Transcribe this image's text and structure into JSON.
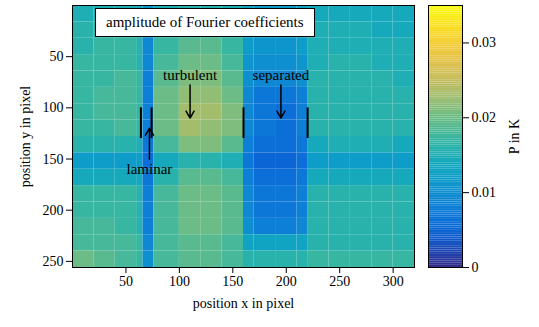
{
  "chart_data": {
    "type": "heatmap",
    "title": "amplitude of Fourier coefficients",
    "x_label": "position x in pixel",
    "y_label": "position y in pixel",
    "xlim": [
      0,
      320
    ],
    "ylim": [
      0,
      256
    ],
    "xticks": [
      50,
      100,
      150,
      200,
      250,
      300
    ],
    "yticks": [
      50,
      100,
      150,
      200,
      250
    ],
    "x_edges": [
      0,
      20,
      40,
      60,
      66,
      76,
      100,
      120,
      140,
      160,
      170,
      190,
      210,
      220,
      240,
      260,
      280,
      300,
      320
    ],
    "y_edges": [
      0,
      16,
      32,
      48,
      64,
      80,
      96,
      112,
      128,
      144,
      160,
      176,
      192,
      208,
      224,
      240,
      256
    ],
    "values": [
      [
        0.015,
        0.015,
        0.015,
        0.014,
        0.011,
        0.015,
        0.016,
        0.016,
        0.015,
        0.013,
        0.012,
        0.012,
        0.013,
        0.014,
        0.014,
        0.014,
        0.014,
        0.014
      ],
      [
        0.016,
        0.016,
        0.016,
        0.015,
        0.01,
        0.016,
        0.017,
        0.017,
        0.016,
        0.013,
        0.012,
        0.012,
        0.013,
        0.015,
        0.015,
        0.015,
        0.014,
        0.014
      ],
      [
        0.016,
        0.017,
        0.017,
        0.016,
        0.009,
        0.017,
        0.019,
        0.019,
        0.017,
        0.012,
        0.011,
        0.011,
        0.012,
        0.015,
        0.015,
        0.015,
        0.015,
        0.015
      ],
      [
        0.017,
        0.017,
        0.017,
        0.016,
        0.009,
        0.018,
        0.02,
        0.02,
        0.018,
        0.011,
        0.01,
        0.01,
        0.011,
        0.015,
        0.016,
        0.016,
        0.015,
        0.015
      ],
      [
        0.017,
        0.017,
        0.018,
        0.017,
        0.008,
        0.019,
        0.021,
        0.021,
        0.019,
        0.01,
        0.009,
        0.009,
        0.01,
        0.016,
        0.016,
        0.016,
        0.016,
        0.015
      ],
      [
        0.017,
        0.018,
        0.018,
        0.017,
        0.008,
        0.02,
        0.022,
        0.022,
        0.02,
        0.009,
        0.007,
        0.007,
        0.008,
        0.016,
        0.016,
        0.016,
        0.016,
        0.016
      ],
      [
        0.017,
        0.018,
        0.018,
        0.017,
        0.008,
        0.02,
        0.023,
        0.023,
        0.021,
        0.009,
        0.007,
        0.006,
        0.008,
        0.016,
        0.016,
        0.016,
        0.016,
        0.016
      ],
      [
        0.017,
        0.017,
        0.018,
        0.017,
        0.008,
        0.02,
        0.023,
        0.022,
        0.021,
        0.009,
        0.007,
        0.006,
        0.008,
        0.016,
        0.016,
        0.016,
        0.016,
        0.016
      ],
      [
        0.016,
        0.016,
        0.016,
        0.015,
        0.007,
        0.018,
        0.021,
        0.021,
        0.019,
        0.008,
        0.006,
        0.006,
        0.007,
        0.014,
        0.015,
        0.015,
        0.015,
        0.014
      ],
      [
        0.012,
        0.012,
        0.012,
        0.012,
        0.006,
        0.014,
        0.016,
        0.016,
        0.015,
        0.007,
        0.005,
        0.005,
        0.006,
        0.012,
        0.012,
        0.012,
        0.012,
        0.012
      ],
      [
        0.014,
        0.014,
        0.014,
        0.014,
        0.007,
        0.016,
        0.019,
        0.019,
        0.018,
        0.008,
        0.006,
        0.006,
        0.007,
        0.014,
        0.014,
        0.014,
        0.014,
        0.014
      ],
      [
        0.017,
        0.017,
        0.017,
        0.016,
        0.008,
        0.018,
        0.02,
        0.02,
        0.019,
        0.009,
        0.007,
        0.007,
        0.008,
        0.016,
        0.016,
        0.016,
        0.016,
        0.016
      ],
      [
        0.017,
        0.017,
        0.017,
        0.016,
        0.008,
        0.018,
        0.02,
        0.02,
        0.019,
        0.009,
        0.007,
        0.007,
        0.008,
        0.016,
        0.016,
        0.016,
        0.016,
        0.016
      ],
      [
        0.018,
        0.018,
        0.017,
        0.016,
        0.008,
        0.018,
        0.02,
        0.02,
        0.019,
        0.01,
        0.008,
        0.008,
        0.009,
        0.016,
        0.016,
        0.016,
        0.016,
        0.016
      ],
      [
        0.018,
        0.018,
        0.018,
        0.017,
        0.009,
        0.018,
        0.019,
        0.019,
        0.018,
        0.013,
        0.013,
        0.013,
        0.013,
        0.016,
        0.016,
        0.016,
        0.016,
        0.016
      ],
      [
        0.02,
        0.019,
        0.018,
        0.017,
        0.01,
        0.018,
        0.019,
        0.019,
        0.018,
        0.016,
        0.016,
        0.016,
        0.016,
        0.017,
        0.017,
        0.017,
        0.017,
        0.017
      ]
    ],
    "colorbar": {
      "label": "P in K",
      "range": [
        0,
        0.035
      ],
      "ticks": [
        0,
        0.01,
        0.02,
        0.03
      ]
    },
    "annotations": [
      {
        "text": "turbulent",
        "x": 110,
        "y": 68,
        "arrow_to": [
          110,
          110
        ]
      },
      {
        "text": "separated",
        "x": 195,
        "y": 68,
        "arrow_to": [
          195,
          110
        ]
      },
      {
        "text": "laminar",
        "x": 72,
        "y": 160,
        "arrow_to": [
          72,
          120
        ]
      }
    ],
    "boundaries": {
      "x": [
        64,
        74,
        160,
        220
      ],
      "y": [
        100,
        130
      ]
    }
  }
}
